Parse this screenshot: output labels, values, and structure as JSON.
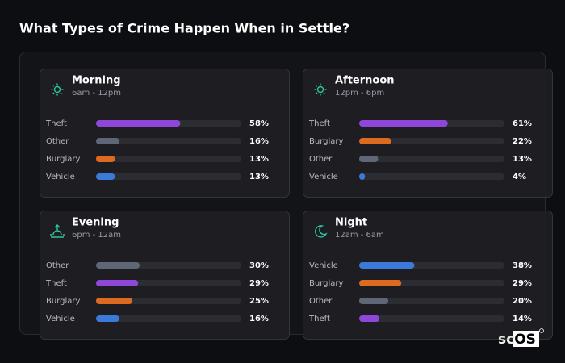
{
  "title": "What Types of Crime Happen When in Settle?",
  "logo": "scOS",
  "chart_data": [
    {
      "type": "bar",
      "title": "Morning",
      "subtitle": "6am - 12pm",
      "categories": [
        "Theft",
        "Other",
        "Burglary",
        "Vehicle"
      ],
      "values": [
        58,
        16,
        13,
        13
      ],
      "value_labels": [
        "58%",
        "16%",
        "13%",
        "13%"
      ],
      "colors": [
        "#8e47d8",
        "#5f6675",
        "#dc6a1f",
        "#3b7ad9"
      ],
      "xlim": [
        0,
        100
      ]
    },
    {
      "type": "bar",
      "title": "Afternoon",
      "subtitle": "12pm - 6pm",
      "categories": [
        "Theft",
        "Burglary",
        "Other",
        "Vehicle"
      ],
      "values": [
        61,
        22,
        13,
        4
      ],
      "value_labels": [
        "61%",
        "22%",
        "13%",
        "4%"
      ],
      "colors": [
        "#8e47d8",
        "#dc6a1f",
        "#5f6675",
        "#3b7ad9"
      ],
      "xlim": [
        0,
        100
      ]
    },
    {
      "type": "bar",
      "title": "Evening",
      "subtitle": "6pm - 12am",
      "categories": [
        "Other",
        "Theft",
        "Burglary",
        "Vehicle"
      ],
      "values": [
        30,
        29,
        25,
        16
      ],
      "value_labels": [
        "30%",
        "29%",
        "25%",
        "16%"
      ],
      "colors": [
        "#5f6675",
        "#8e47d8",
        "#dc6a1f",
        "#3b7ad9"
      ],
      "xlim": [
        0,
        100
      ]
    },
    {
      "type": "bar",
      "title": "Night",
      "subtitle": "12am - 6am",
      "categories": [
        "Vehicle",
        "Burglary",
        "Other",
        "Theft"
      ],
      "values": [
        38,
        29,
        20,
        14
      ],
      "value_labels": [
        "38%",
        "29%",
        "20%",
        "14%"
      ],
      "colors": [
        "#3b7ad9",
        "#dc6a1f",
        "#5f6675",
        "#8e47d8"
      ],
      "xlim": [
        0,
        100
      ]
    }
  ]
}
